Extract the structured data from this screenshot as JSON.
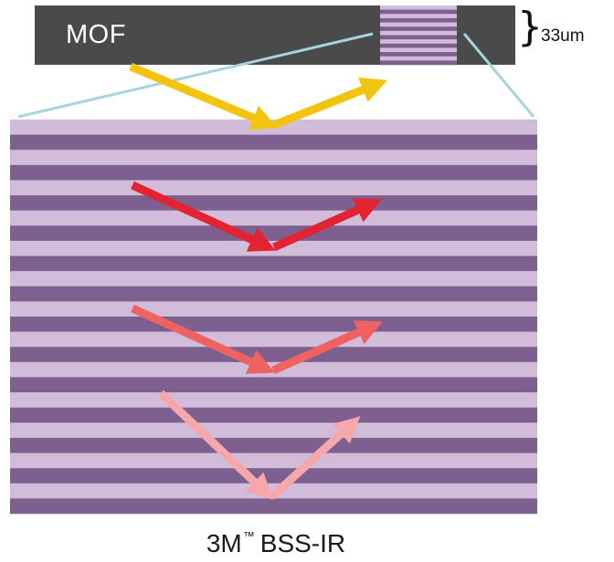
{
  "mof_label": "MOF",
  "thickness_label": "33um",
  "caption": {
    "prefix": "3M",
    "trademark": "™",
    "suffix": "BSS-IR"
  },
  "colors": {
    "film": "#4a4a4a",
    "layer_light": "#d1bdd9",
    "layer_dark": "#7d5f90",
    "zoom_line": "#a8d4df",
    "arrow_yellow": "#f2c40f",
    "arrow_red": "#e3232f",
    "arrow_coral": "#ef6262",
    "arrow_pink": "#f5a7ab"
  },
  "icons": {
    "brace": "right-curly-brace-icon"
  }
}
